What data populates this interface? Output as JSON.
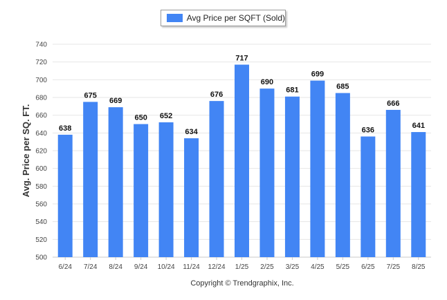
{
  "chart_data": {
    "type": "bar",
    "categories": [
      "6/24",
      "7/24",
      "8/24",
      "9/24",
      "10/24",
      "11/24",
      "12/24",
      "1/25",
      "2/25",
      "3/25",
      "4/25",
      "5/25",
      "6/25",
      "7/25",
      "8/25"
    ],
    "series": [
      {
        "name": "Avg Price per SQFT (Sold)",
        "values": [
          638,
          675,
          669,
          650,
          652,
          634,
          676,
          717,
          690,
          681,
          699,
          685,
          636,
          666,
          641
        ]
      }
    ],
    "ylabel": "Avg. Price per SQ. FT.",
    "ylim": [
      500,
      740
    ],
    "yticks": [
      500,
      520,
      540,
      560,
      580,
      600,
      620,
      640,
      660,
      680,
      700,
      720,
      740
    ],
    "grid": true,
    "legend": "top-center",
    "bar_color": "#4285f4"
  },
  "footer": {
    "copyright": "Copyright © Trendgraphix, Inc."
  }
}
